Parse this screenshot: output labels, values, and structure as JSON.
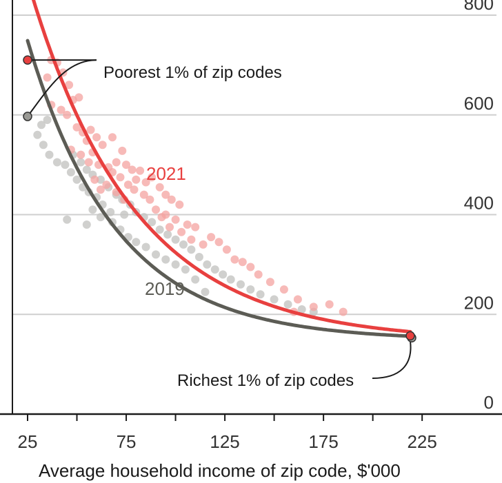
{
  "chart_data": {
    "type": "scatter",
    "title": "",
    "xlabel": "Average household income of zip code, $'000",
    "ylabel": "",
    "xlim": [
      20,
      255
    ],
    "ylim": [
      0,
      800
    ],
    "x_ticks": [
      25,
      50,
      75,
      100,
      125,
      150,
      175,
      200,
      225
    ],
    "x_tick_labels": [
      "25",
      "75",
      "125",
      "175",
      "225"
    ],
    "x_tick_label_values": [
      25,
      75,
      125,
      175,
      225
    ],
    "y_ticks": [
      0,
      200,
      400,
      600,
      800
    ],
    "y_tick_labels": [
      "0",
      "200",
      "400",
      "600",
      "800"
    ],
    "colors": {
      "red": "#e8403f",
      "grey": "#5c5c55",
      "red_light": "#f4a3a0",
      "grey_light": "#c4c4c2",
      "grid": "#cfcfcf",
      "axis": "#1a1a1a"
    },
    "series": [
      {
        "name": "2021",
        "color": "#e8403f",
        "curve": {
          "a": 1155,
          "b": 0.0187,
          "c": 146,
          "x0": 25,
          "x1": 219
        },
        "points": [
          [
            37,
            710
          ],
          [
            40,
            705
          ],
          [
            35,
            675
          ],
          [
            43,
            685
          ],
          [
            46,
            660
          ],
          [
            48,
            630
          ],
          [
            51,
            635
          ],
          [
            37,
            620
          ],
          [
            42,
            610
          ],
          [
            45,
            600
          ],
          [
            50,
            575
          ],
          [
            53,
            565
          ],
          [
            57,
            570
          ],
          [
            55,
            548
          ],
          [
            60,
            555
          ],
          [
            63,
            540
          ],
          [
            68,
            555
          ],
          [
            73,
            528
          ],
          [
            47,
            530
          ],
          [
            52,
            520
          ],
          [
            58,
            525
          ],
          [
            56,
            505
          ],
          [
            61,
            500
          ],
          [
            66,
            495
          ],
          [
            70,
            505
          ],
          [
            75,
            500
          ],
          [
            78,
            490
          ],
          [
            82,
            488
          ],
          [
            80,
            470
          ],
          [
            85,
            465
          ],
          [
            88,
            475
          ],
          [
            92,
            455
          ],
          [
            95,
            440
          ],
          [
            98,
            430
          ],
          [
            102,
            420
          ],
          [
            90,
            410
          ],
          [
            95,
            400
          ],
          [
            100,
            390
          ],
          [
            106,
            380
          ],
          [
            110,
            375
          ],
          [
            68,
            485
          ],
          [
            72,
            475
          ],
          [
            76,
            460
          ],
          [
            79,
            450
          ],
          [
            84,
            440
          ],
          [
            87,
            430
          ],
          [
            93,
            395
          ],
          [
            97,
            375
          ],
          [
            103,
            365
          ],
          [
            108,
            350
          ],
          [
            114,
            340
          ],
          [
            118,
            355
          ],
          [
            122,
            345
          ],
          [
            126,
            330
          ],
          [
            130,
            310
          ],
          [
            134,
            305
          ],
          [
            138,
            295
          ],
          [
            142,
            280
          ],
          [
            148,
            265
          ],
          [
            155,
            250
          ],
          [
            162,
            230
          ],
          [
            170,
            215
          ],
          [
            178,
            220
          ],
          [
            185,
            205
          ],
          [
            160,
            205
          ],
          [
            65,
            460
          ],
          [
            70,
            445
          ],
          [
            74,
            430
          ],
          [
            59,
            470
          ],
          [
            62,
            450
          ]
        ]
      },
      {
        "name": "2019",
        "color": "#5c5c55",
        "curve": {
          "a": 1044,
          "b": 0.0221,
          "c": 148,
          "x0": 25,
          "x1": 219
        },
        "points": [
          [
            25,
            595
          ],
          [
            32,
            580
          ],
          [
            35,
            590
          ],
          [
            30,
            560
          ],
          [
            33,
            540
          ],
          [
            36,
            520
          ],
          [
            40,
            505
          ],
          [
            44,
            500
          ],
          [
            47,
            485
          ],
          [
            50,
            470
          ],
          [
            53,
            455
          ],
          [
            56,
            445
          ],
          [
            60,
            435
          ],
          [
            48,
            520
          ],
          [
            52,
            505
          ],
          [
            55,
            490
          ],
          [
            58,
            480
          ],
          [
            62,
            470
          ],
          [
            66,
            455
          ],
          [
            70,
            440
          ],
          [
            73,
            430
          ],
          [
            77,
            420
          ],
          [
            80,
            405
          ],
          [
            84,
            395
          ],
          [
            88,
            385
          ],
          [
            92,
            370
          ],
          [
            96,
            360
          ],
          [
            100,
            350
          ],
          [
            104,
            340
          ],
          [
            108,
            330
          ],
          [
            112,
            315
          ],
          [
            116,
            300
          ],
          [
            120,
            290
          ],
          [
            124,
            280
          ],
          [
            128,
            270
          ],
          [
            133,
            260
          ],
          [
            138,
            250
          ],
          [
            143,
            240
          ],
          [
            150,
            230
          ],
          [
            157,
            220
          ],
          [
            164,
            210
          ],
          [
            170,
            205
          ],
          [
            45,
            390
          ],
          [
            55,
            380
          ],
          [
            62,
            395
          ],
          [
            68,
            385
          ],
          [
            72,
            370
          ],
          [
            76,
            355
          ],
          [
            80,
            345
          ],
          [
            85,
            335
          ],
          [
            90,
            320
          ],
          [
            95,
            310
          ],
          [
            100,
            300
          ],
          [
            105,
            290
          ],
          [
            110,
            270
          ],
          [
            115,
            245
          ],
          [
            58,
            410
          ],
          [
            63,
            420
          ],
          [
            67,
            405
          ],
          [
            74,
            400
          ]
        ]
      }
    ],
    "annotations": {
      "poorest": {
        "text": "Poorest 1% of zip codes",
        "x2021": 25,
        "y2021": 710,
        "x2019": 25,
        "y2019": 597
      },
      "richest": {
        "text": "Richest 1% of zip codes",
        "x2021": 219,
        "y2021": 157,
        "x2019": 219,
        "y2019": 153
      }
    },
    "labels": {
      "series_2021": "2021",
      "series_2019": "2019"
    }
  }
}
